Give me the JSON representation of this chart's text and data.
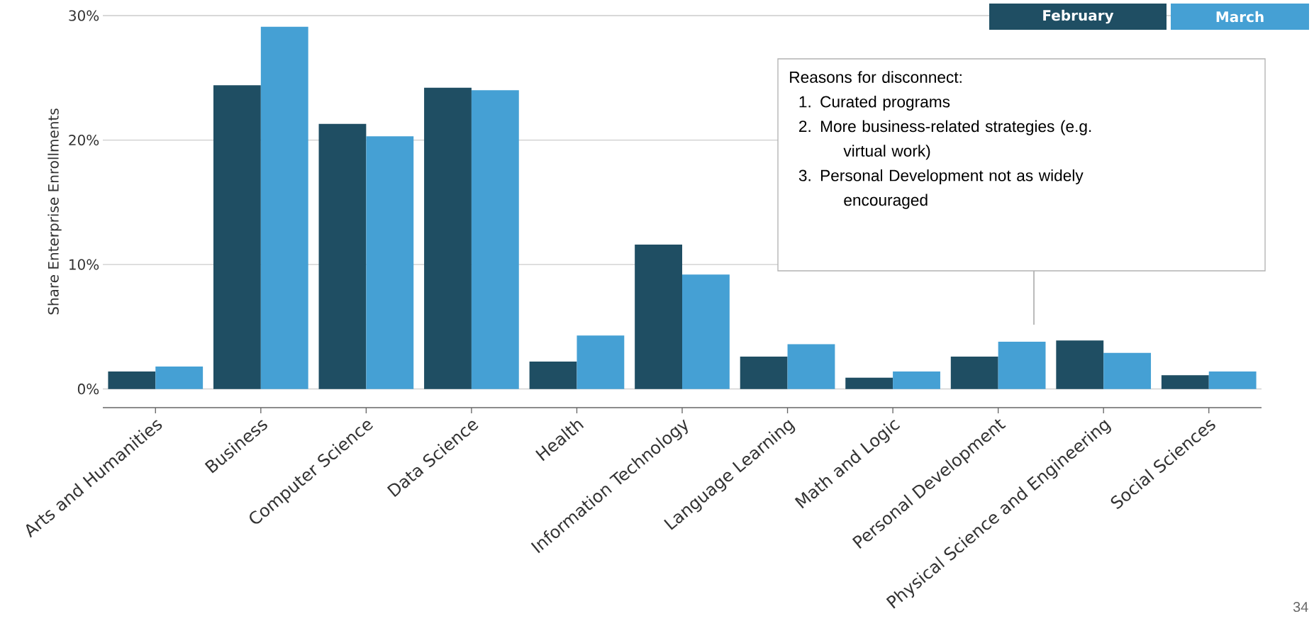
{
  "chart_data": {
    "type": "bar",
    "ylabel": "Share Enterprise Enrollments",
    "categories": [
      "Arts and Humanities",
      "Business",
      "Computer Science",
      "Data Science",
      "Health",
      "Information Technology",
      "Language Learning",
      "Math and Logic",
      "Personal Development",
      "Physical Science and Engineering",
      "Social Sciences"
    ],
    "series": [
      {
        "name": "February",
        "color": "#1f4e63",
        "values": [
          1.4,
          24.4,
          21.3,
          24.2,
          2.2,
          11.6,
          2.6,
          0.9,
          2.6,
          3.9,
          1.1
        ]
      },
      {
        "name": "March",
        "color": "#45a0d4",
        "values": [
          1.8,
          29.1,
          20.3,
          24.0,
          4.3,
          9.2,
          3.6,
          1.4,
          3.8,
          2.9,
          1.4
        ]
      }
    ],
    "ylim": [
      -1.5,
      30
    ],
    "yticks": [
      {
        "value": 0,
        "label": "0%"
      },
      {
        "value": 10,
        "label": "10%"
      },
      {
        "value": 20,
        "label": "20%"
      },
      {
        "value": 30,
        "label": "30%"
      }
    ],
    "grid": "y",
    "legend": "top right",
    "annotations": [
      "Reasons for disconnect:",
      "1. Curated programs",
      "2. More business-related strategies (e.g. virtual work)",
      "3. Personal Development not as widely encouraged",
      "34"
    ]
  }
}
